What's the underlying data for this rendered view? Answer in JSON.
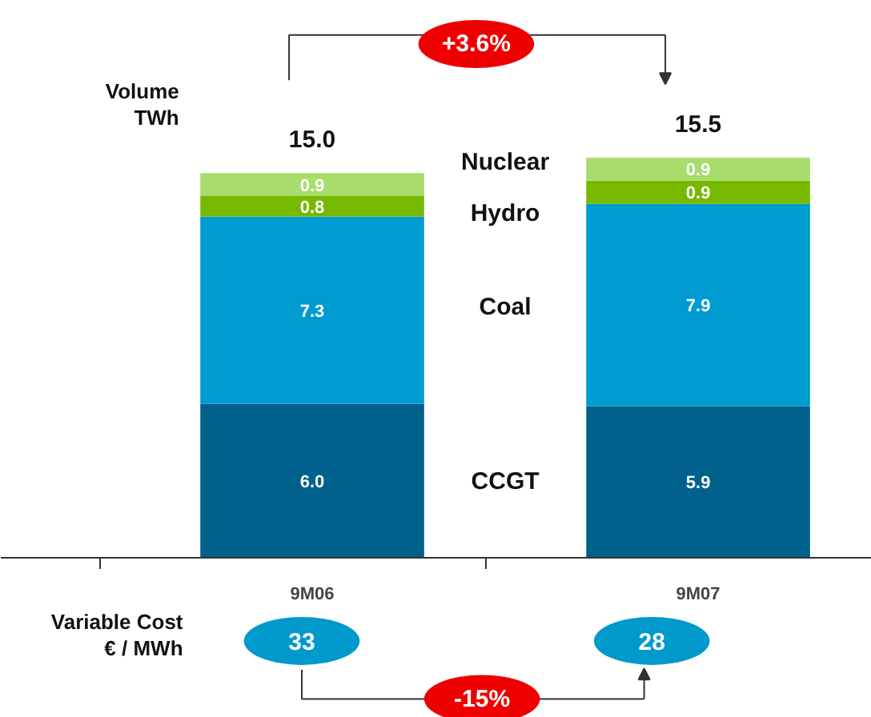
{
  "chart_data": {
    "type": "bar",
    "stacked": true,
    "categories": [
      "9M06",
      "9M07"
    ],
    "series": [
      {
        "name": "CCGT",
        "color": "#00618c",
        "values": [
          6.0,
          5.9
        ],
        "value_labels": [
          "6.0",
          "5.9"
        ]
      },
      {
        "name": "Coal",
        "color": "#009bd0",
        "values": [
          7.3,
          7.9
        ],
        "value_labels": [
          "7.3",
          "7.9"
        ]
      },
      {
        "name": "Hydro",
        "color": "#77b900",
        "values": [
          0.8,
          0.9
        ],
        "value_labels": [
          "0.8",
          "0.9"
        ]
      },
      {
        "name": "Nuclear",
        "color": "#a8dc6c",
        "values": [
          0.9,
          0.9
        ],
        "value_labels": [
          "0.9",
          "0.9"
        ]
      }
    ],
    "totals": [
      "15.0",
      "15.5"
    ],
    "legend": false,
    "grid": false,
    "annotations": [
      "Volume\nTWh",
      "+3.6%",
      "Variable Cost\n€ / MWh",
      "33",
      "28",
      "-15%"
    ]
  }
}
